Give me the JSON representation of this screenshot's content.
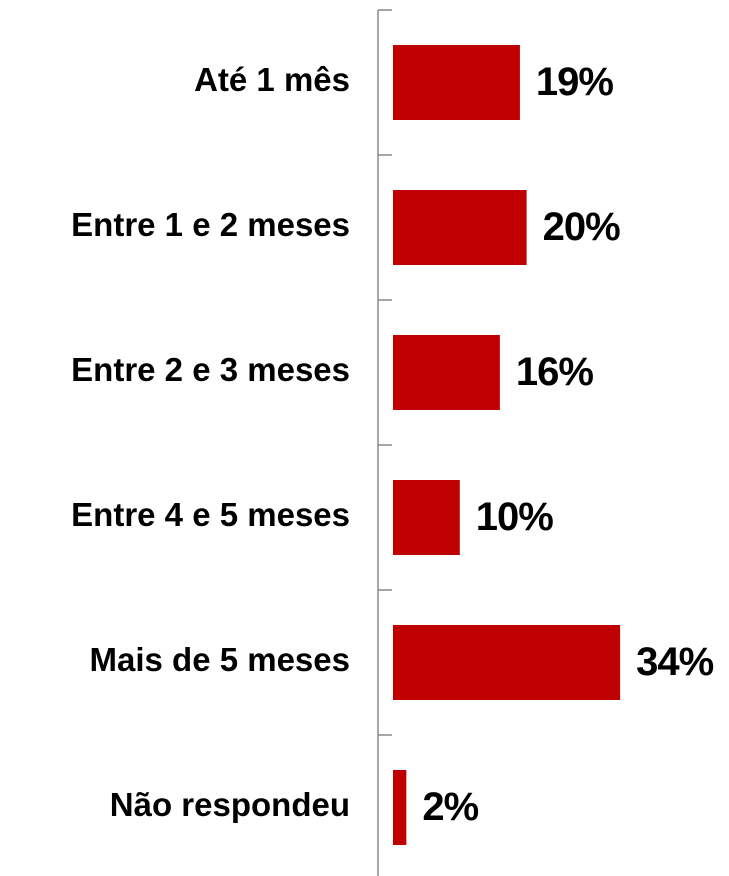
{
  "chart_data": {
    "type": "bar",
    "orientation": "horizontal",
    "categories": [
      "Até 1 mês",
      "Entre 1 e 2 meses",
      "Entre 2 e 3 meses",
      "Entre 4 e 5 meses",
      "Mais de 5 meses",
      "Não respondeu"
    ],
    "values": [
      19,
      20,
      16,
      10,
      34,
      2
    ],
    "value_labels": [
      "19%",
      "20%",
      "16%",
      "10%",
      "34%",
      "2%"
    ],
    "color": "#c00000"
  }
}
